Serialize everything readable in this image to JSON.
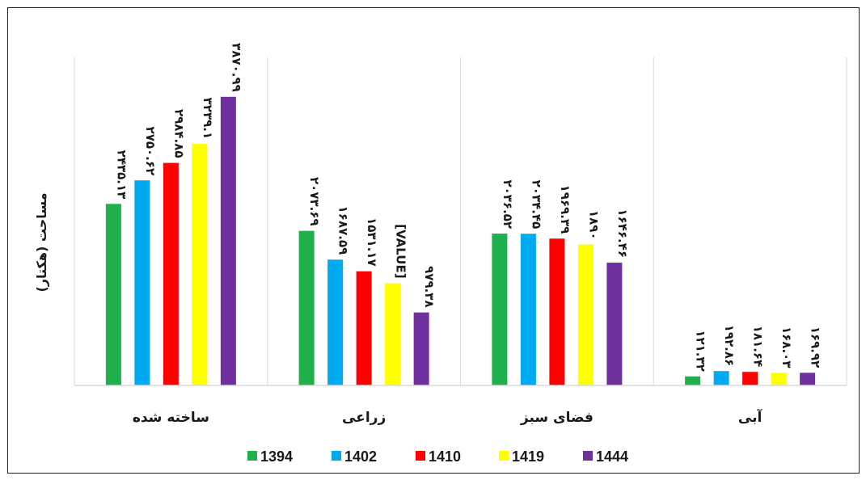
{
  "chart_data": {
    "type": "bar",
    "ylabel": "مساحت (هکتار)",
    "ylim": [
      0,
      4400
    ],
    "grid": false,
    "legend_position": "bottom",
    "categories": [
      "ساخته شده",
      "زراعی",
      "فضای سبز",
      "آبی"
    ],
    "series": [
      {
        "name": "1394",
        "color": "#1fb04b",
        "values": [
          2435.13,
          2073.69,
          2036.52,
          121.32
        ],
        "labels": [
          "۲۴۳۵.۱۳",
          "۲۰۷۳.۶۹",
          "۲۰۳۶.۵۲",
          "۱۲۱.۳۲"
        ]
      },
      {
        "name": "1402",
        "color": "#00aaf0",
        "values": [
          2750.62,
          1687.59,
          2034.45,
          192.86
        ],
        "labels": [
          "۲۷۵۰.۶۲",
          "۱۶۸۷.۵۹",
          "۲۰۳۴.۴۵",
          "۱۹۲.۸۶"
        ]
      },
      {
        "name": "1410",
        "color": "#ff0000",
        "values": [
          2984.85,
          1531.17,
          1969.39,
          181.64
        ],
        "labels": [
          "۲۹۸۴.۸۵",
          "۱۵۳۱.۱۷",
          "۱۹۶۹.۳۹",
          "۱۸۱.۶۴"
        ]
      },
      {
        "name": "1419",
        "color": "#ffff00",
        "values": [
          3239.1,
          1370,
          1890,
          168.03
        ],
        "labels": [
          "۳۲۳۹.۱",
          "[VALUE]",
          "۱۸۹۰",
          "۱۶۸.۰۳"
        ]
      },
      {
        "name": "1444",
        "color": "#7030a0",
        "values": [
          3870.99,
          979.38,
          1646.46,
          169.92
        ],
        "labels": [
          "۳۸۷۰.۹۹",
          "۹۷۹.۳۸",
          "۱۶۴۶.۴۶",
          "۱۶۹.۹۲"
        ]
      }
    ]
  }
}
